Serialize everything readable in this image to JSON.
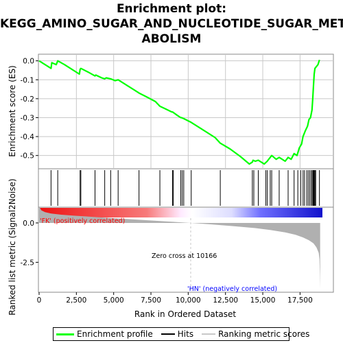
{
  "title_lines": [
    "Enrichment plot:",
    "KEGG_AMINO_SUGAR_AND_NUCLEOTIDE_SUGAR_MET",
    "ABOLISM"
  ],
  "colors": {
    "es_line": "#00ff00",
    "hit_line": "#000000",
    "metric_fill": "#b0b0b0",
    "positive_label": "#ff0000",
    "negative_label": "#0000ff",
    "zero_line": "#c8c8c8",
    "grid": "#c8c8c8"
  },
  "chart_data": [
    {
      "type": "line",
      "name": "enrichment-profile",
      "ylabel": "Enrichment score (ES)",
      "ylim": [
        -0.57,
        0.035
      ],
      "xlim": [
        0,
        19500
      ],
      "yticks": [
        0.0,
        -0.1,
        -0.2,
        -0.3,
        -0.4,
        -0.5
      ],
      "ytick_labels": [
        "0.0",
        "-0.1",
        "-0.2",
        "-0.3",
        "-0.4",
        "-0.5"
      ],
      "grid": true,
      "x": [
        0,
        400,
        800,
        850,
        1150,
        1250,
        1700,
        2200,
        2700,
        2750,
        2800,
        3300,
        3750,
        3800,
        4200,
        4400,
        4500,
        4800,
        5100,
        5300,
        6000,
        6600,
        6700,
        7200,
        7800,
        8100,
        8500,
        8900,
        8950,
        9300,
        9500,
        9550,
        9700,
        10200,
        11000,
        11800,
        12150,
        12800,
        13500,
        14100,
        14300,
        14350,
        14500,
        14700,
        15100,
        15300,
        15400,
        15500,
        15600,
        15900,
        16100,
        16300,
        16500,
        16700,
        16900,
        17100,
        17300,
        17450,
        17600,
        17700,
        17850,
        18000,
        18100,
        18200,
        18300,
        18350,
        18400,
        18450,
        18500,
        18600,
        18700,
        18800
      ],
      "y": [
        0.0,
        -0.02,
        -0.04,
        -0.01,
        -0.02,
        0.0,
        -0.02,
        -0.045,
        -0.07,
        -0.045,
        -0.04,
        -0.06,
        -0.08,
        -0.075,
        -0.09,
        -0.095,
        -0.09,
        -0.095,
        -0.105,
        -0.1,
        -0.135,
        -0.165,
        -0.17,
        -0.19,
        -0.215,
        -0.24,
        -0.255,
        -0.27,
        -0.27,
        -0.29,
        -0.3,
        -0.3,
        -0.305,
        -0.325,
        -0.365,
        -0.405,
        -0.435,
        -0.465,
        -0.505,
        -0.545,
        -0.535,
        -0.525,
        -0.53,
        -0.525,
        -0.545,
        -0.53,
        -0.52,
        -0.51,
        -0.5,
        -0.52,
        -0.51,
        -0.52,
        -0.53,
        -0.51,
        -0.52,
        -0.49,
        -0.5,
        -0.46,
        -0.44,
        -0.4,
        -0.37,
        -0.345,
        -0.31,
        -0.3,
        -0.26,
        -0.2,
        -0.13,
        -0.07,
        -0.04,
        -0.03,
        -0.02,
        0.005
      ]
    },
    {
      "type": "hits",
      "name": "hits",
      "positions": [
        800,
        1250,
        2750,
        2800,
        3750,
        4400,
        4800,
        5300,
        6700,
        8100,
        8950,
        9000,
        9500,
        9600,
        9700,
        10200,
        12150,
        14300,
        14400,
        14700,
        15200,
        15300,
        15500,
        15600,
        16100,
        16700,
        17100,
        17350,
        17550,
        17700,
        17800,
        17950,
        18050,
        18150,
        18250,
        18320,
        18380,
        18420,
        18460,
        18500,
        18550,
        18800
      ]
    },
    {
      "type": "area",
      "name": "ranking-metric",
      "xlabel": "Rank in Ordered Dataset",
      "ylabel": "Ranked list metric (Signal2Noise)",
      "ylim": [
        -4.4,
        1.0
      ],
      "yticks": [
        0.0,
        -2.5
      ],
      "ytick_labels": [
        "0.0",
        "-2.5"
      ],
      "xticks": [
        0,
        2500,
        5000,
        7500,
        10000,
        12500,
        15000,
        17500
      ],
      "xtick_labels": [
        "0",
        "2,500",
        "5,000",
        "7,500",
        "10,000",
        "12,500",
        "15,000",
        "17,500"
      ],
      "x": [
        0,
        150,
        400,
        800,
        1500,
        2500,
        4000,
        5500,
        7000,
        8500,
        10166,
        11500,
        13000,
        14500,
        15500,
        16500,
        17200,
        17700,
        18100,
        18400,
        18600,
        18750,
        18800,
        18830,
        18850
      ],
      "y": [
        1.05,
        0.8,
        0.68,
        0.6,
        0.52,
        0.45,
        0.36,
        0.27,
        0.18,
        0.1,
        0.0,
        -0.09,
        -0.2,
        -0.33,
        -0.45,
        -0.6,
        -0.75,
        -0.92,
        -1.1,
        -1.3,
        -1.55,
        -1.9,
        -2.3,
        -3.2,
        -4.2
      ],
      "annotations": {
        "zero_cross": "Zero cross at 10166",
        "positive": "'FK' (positively correlated)",
        "negative": "'HN' (negatively correlated)"
      }
    }
  ],
  "legend": {
    "items": [
      {
        "label": "Enrichment profile",
        "color": "#00ff00"
      },
      {
        "label": "Hits",
        "color": "#000000"
      },
      {
        "label": "Ranking metric scores",
        "color": "#c8c8c8"
      }
    ]
  }
}
